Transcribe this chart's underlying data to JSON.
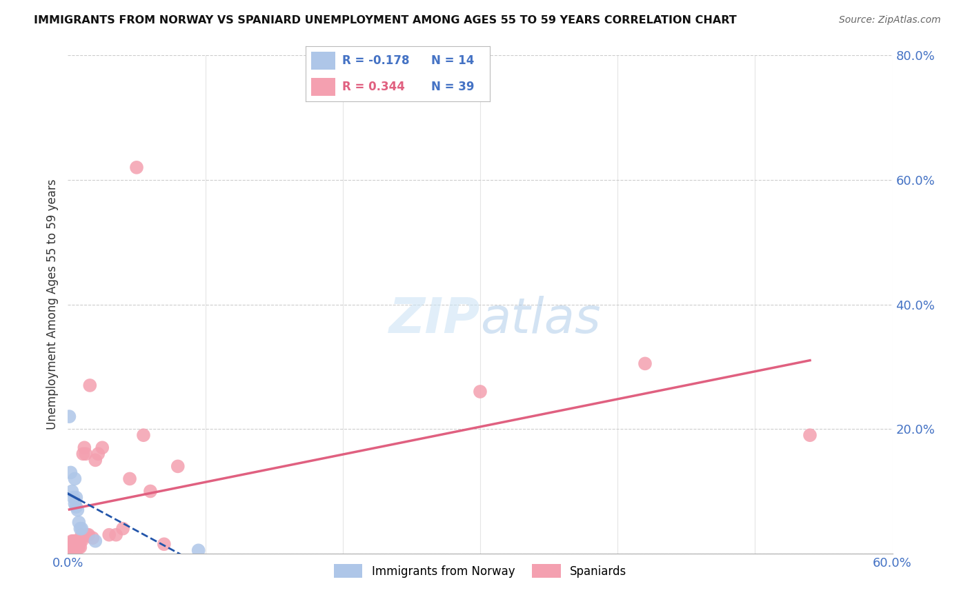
{
  "title": "IMMIGRANTS FROM NORWAY VS SPANIARD UNEMPLOYMENT AMONG AGES 55 TO 59 YEARS CORRELATION CHART",
  "source": "Source: ZipAtlas.com",
  "ylabel": "Unemployment Among Ages 55 to 59 years",
  "xlim": [
    0.0,
    0.6
  ],
  "ylim": [
    0.0,
    0.8
  ],
  "xticks": [
    0.0,
    0.1,
    0.2,
    0.3,
    0.4,
    0.5,
    0.6
  ],
  "xticklabels": [
    "0.0%",
    "",
    "",
    "",
    "",
    "",
    "60.0%"
  ],
  "yticks_right": [
    0.0,
    0.2,
    0.4,
    0.6,
    0.8
  ],
  "ytick_right_labels": [
    "",
    "20.0%",
    "40.0%",
    "60.0%",
    "80.0%"
  ],
  "norway_R": -0.178,
  "norway_N": 14,
  "spaniard_R": 0.344,
  "spaniard_N": 39,
  "norway_color": "#aec6e8",
  "spaniard_color": "#f4a0b0",
  "norway_line_color": "#2255aa",
  "spaniard_line_color": "#e06080",
  "background_color": "#ffffff",
  "grid_color": "#cccccc",
  "norway_x": [
    0.001,
    0.002,
    0.003,
    0.004,
    0.005,
    0.005,
    0.006,
    0.006,
    0.007,
    0.008,
    0.009,
    0.01,
    0.02,
    0.095
  ],
  "norway_y": [
    0.22,
    0.13,
    0.1,
    0.09,
    0.12,
    0.08,
    0.09,
    0.075,
    0.07,
    0.05,
    0.04,
    0.04,
    0.02,
    0.005
  ],
  "spaniard_x": [
    0.001,
    0.002,
    0.003,
    0.004,
    0.004,
    0.005,
    0.005,
    0.006,
    0.006,
    0.007,
    0.007,
    0.008,
    0.008,
    0.009,
    0.009,
    0.01,
    0.01,
    0.011,
    0.012,
    0.013,
    0.014,
    0.015,
    0.016,
    0.018,
    0.02,
    0.022,
    0.025,
    0.03,
    0.035,
    0.04,
    0.045,
    0.05,
    0.055,
    0.06,
    0.07,
    0.08,
    0.3,
    0.42,
    0.54
  ],
  "spaniard_y": [
    0.01,
    0.01,
    0.02,
    0.01,
    0.02,
    0.01,
    0.02,
    0.01,
    0.02,
    0.01,
    0.015,
    0.01,
    0.015,
    0.02,
    0.01,
    0.02,
    0.03,
    0.16,
    0.17,
    0.16,
    0.03,
    0.03,
    0.27,
    0.025,
    0.15,
    0.16,
    0.17,
    0.03,
    0.03,
    0.04,
    0.12,
    0.62,
    0.19,
    0.1,
    0.015,
    0.14,
    0.26,
    0.305,
    0.19
  ]
}
